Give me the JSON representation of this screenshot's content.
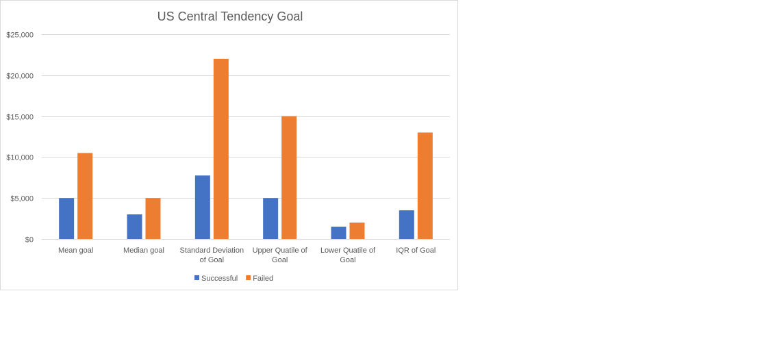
{
  "chart_data": {
    "type": "bar",
    "title": "US Central Tendency Goal",
    "categories": [
      [
        "Mean goal"
      ],
      [
        "Median goal"
      ],
      [
        "Standard Deviation",
        "of Goal"
      ],
      [
        "Upper Quatile of",
        "Goal"
      ],
      [
        "Lower Quatile of",
        "Goal"
      ],
      [
        "IQR of Goal"
      ]
    ],
    "series": [
      {
        "name": "Successful",
        "color": "#4472c4",
        "values": [
          5000,
          3000,
          7750,
          5000,
          1500,
          3500
        ]
      },
      {
        "name": "Failed",
        "color": "#ed7d31",
        "values": [
          10500,
          5000,
          22000,
          15000,
          2000,
          13000
        ]
      }
    ],
    "ylim": [
      0,
      25000
    ],
    "yticks": [
      0,
      5000,
      10000,
      15000,
      20000,
      25000
    ],
    "ytick_labels": [
      "$0",
      "$5,000",
      "$10,000",
      "$15,000",
      "$20,000",
      "$25,000"
    ],
    "grid": true,
    "legend_position": "bottom"
  }
}
